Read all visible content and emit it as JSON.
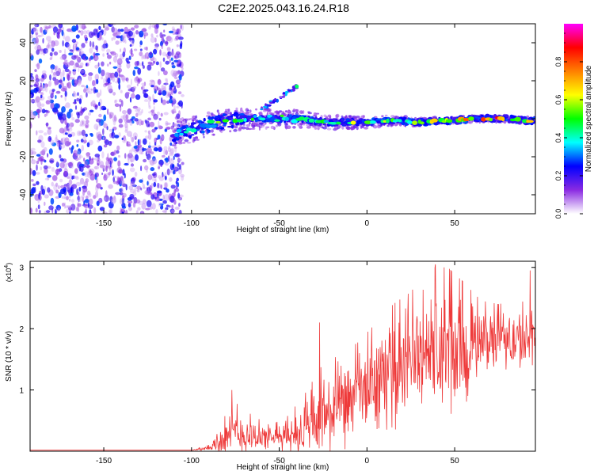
{
  "title": "C2E2.2025.043.16.24.R18",
  "chart_data": [
    {
      "type": "heatmap",
      "xlabel": "Height of straight line (km)",
      "ylabel": "Frequency (Hz)",
      "xlim": [
        -192,
        96
      ],
      "ylim": [
        -50,
        50
      ],
      "x_ticks": [
        -150,
        -100,
        -50,
        0,
        50
      ],
      "y_ticks": [
        -40,
        -20,
        0,
        20,
        40
      ],
      "grid": false,
      "colorbar": {
        "label": "Normalized spectral amplitude",
        "range": [
          0,
          1
        ],
        "ticks": [
          "0.0",
          "0.2",
          "0.4",
          "0.6",
          "0.8"
        ],
        "colors": [
          "#ffffff",
          "#8a2be2",
          "#0000ff",
          "#00ffff",
          "#00ff00",
          "#ffff00",
          "#ff8000",
          "#ff0000",
          "#ff00ff"
        ]
      },
      "signal_trace": {
        "x": [
          -110,
          -100,
          -90,
          -80,
          -70,
          -60,
          -50,
          -40,
          -30,
          -20,
          -10,
          0,
          10,
          20,
          30,
          40,
          50,
          60,
          70,
          80,
          90
        ],
        "frequency": [
          -8,
          -6,
          -3,
          -1,
          0,
          0,
          0,
          0,
          -1,
          -2,
          -2,
          -2,
          -1,
          -1,
          -2,
          -1,
          -1,
          0,
          0,
          0,
          -1
        ],
        "amplitude": [
          0.3,
          0.45,
          0.55,
          0.55,
          0.55,
          0.5,
          0.5,
          0.5,
          0.45,
          0.6,
          0.7,
          0.7,
          0.6,
          0.6,
          0.7,
          0.75,
          0.85,
          0.85,
          0.9,
          0.85,
          0.7
        ]
      },
      "noise_region": {
        "x": [
          -192,
          -105
        ],
        "frequency": [
          -50,
          50
        ],
        "amplitude": [
          0.05,
          0.3
        ]
      },
      "secondary_trace": {
        "x": [
          -60,
          -40
        ],
        "frequency": [
          5,
          17
        ]
      }
    },
    {
      "type": "line",
      "xlabel": "Height of straight line (km)",
      "ylabel": "SNR (10 * v/v)",
      "y_multiplier": "(x10",
      "y_multiplier_exp": "4",
      "y_multiplier_close": ")",
      "xlim": [
        -192,
        96
      ],
      "ylim": [
        0,
        3.1
      ],
      "x_ticks": [
        -150,
        -100,
        -50,
        0,
        50
      ],
      "y_ticks": [
        1,
        2,
        3
      ],
      "color": "#ee3a3a",
      "grid": false,
      "envelope": {
        "x": [
          -192,
          -100,
          -90,
          -85,
          -75,
          -65,
          -55,
          -45,
          -35,
          -25,
          -15,
          -5,
          5,
          15,
          25,
          35,
          45,
          55,
          65,
          75,
          85,
          96
        ],
        "mean": [
          0.02,
          0.02,
          0.05,
          0.15,
          0.3,
          0.25,
          0.2,
          0.25,
          0.35,
          0.55,
          0.7,
          0.9,
          1.1,
          1.3,
          1.5,
          1.65,
          1.6,
          1.55,
          1.8,
          1.85,
          1.8,
          1.75
        ],
        "amplitude": [
          0.0,
          0.0,
          0.05,
          0.25,
          0.45,
          0.3,
          0.2,
          0.3,
          0.55,
          0.8,
          0.8,
          0.8,
          0.9,
          1.0,
          1.0,
          1.2,
          1.3,
          1.1,
          0.6,
          0.5,
          0.6,
          0.6
        ],
        "peaks": [
          {
            "x": 39,
            "y": 3.05
          },
          {
            "x": 44,
            "y": 3.0
          },
          {
            "x": 93,
            "y": 2.95
          },
          {
            "x": -27,
            "y": 2.1
          },
          {
            "x": -77,
            "y": 1.0
          }
        ]
      }
    }
  ]
}
